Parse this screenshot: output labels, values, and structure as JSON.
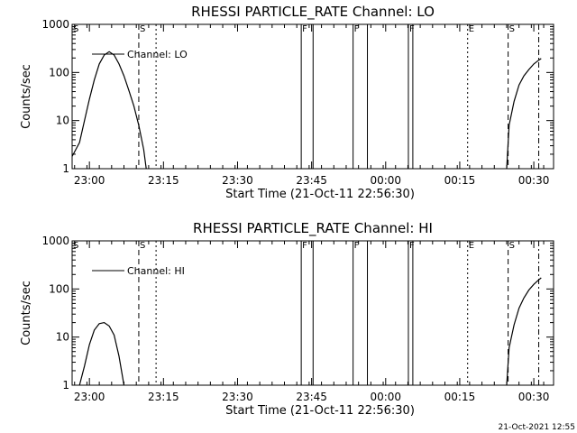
{
  "footer": "21-Oct-2021 12:55",
  "chart_data": [
    {
      "type": "line",
      "title": "RHESSI PARTICLE_RATE Channel: LO",
      "xlabel": "Start Time (21-Oct-11 22:56:30)",
      "ylabel": "Counts/sec",
      "yscale": "log",
      "ylim": [
        1,
        1000
      ],
      "xlim_minutes": [
        0,
        40
      ],
      "xticks": [
        "23:00",
        "23:15",
        "23:30",
        "23:45",
        "00:00",
        "00:15",
        "00:30"
      ],
      "yticks": [
        "1",
        "10",
        "100",
        "1000"
      ],
      "legend": {
        "position": "top-left",
        "entries": [
          "Channel: LO"
        ]
      },
      "flags": [
        "S",
        "F",
        "F",
        "F",
        "E",
        "S"
      ],
      "series": [
        {
          "name": "Channel: LO",
          "segments": [
            {
              "x": [
                "22:56:30",
                "22:58:00",
                "22:59:00",
                "23:00:00",
                "23:01:00",
                "23:02:00",
                "23:03:00",
                "23:04:00",
                "23:05:00",
                "23:06:00",
                "23:07:00",
                "23:08:00",
                "23:09:00",
                "23:10:00",
                "23:11:00",
                "23:11:30"
              ],
              "y": [
                1.8,
                3.5,
                10,
                28,
                70,
                150,
                230,
                270,
                230,
                150,
                85,
                42,
                20,
                8,
                2.5,
                1
              ]
            },
            {
              "x": [
                "00:24:30",
                "00:25:00",
                "00:26:00",
                "00:27:00",
                "00:28:00",
                "00:29:00",
                "00:30:00",
                "00:31:00",
                "00:31:30"
              ],
              "y": [
                1,
                8,
                25,
                55,
                85,
                115,
                150,
                180,
                195
              ]
            }
          ]
        }
      ]
    },
    {
      "type": "line",
      "title": "RHESSI PARTICLE_RATE Channel: HI",
      "xlabel": "Start Time (21-Oct-11 22:56:30)",
      "ylabel": "Counts/sec",
      "yscale": "log",
      "ylim": [
        1,
        1000
      ],
      "xlim_minutes": [
        0,
        40
      ],
      "xticks": [
        "23:00",
        "23:15",
        "23:30",
        "23:45",
        "00:00",
        "00:15",
        "00:30"
      ],
      "yticks": [
        "1",
        "10",
        "100",
        "1000"
      ],
      "legend": {
        "position": "top-left",
        "entries": [
          "Channel: HI"
        ]
      },
      "flags": [
        "S",
        "F",
        "F",
        "F",
        "E",
        "S"
      ],
      "series": [
        {
          "name": "Channel: HI",
          "segments": [
            {
              "x": [
                "22:58:00",
                "22:59:00",
                "23:00:00",
                "23:01:00",
                "23:02:00",
                "23:03:00",
                "23:04:00",
                "23:05:00",
                "23:06:00",
                "23:07:00"
              ],
              "y": [
                1,
                2.5,
                7,
                14,
                19,
                20,
                17,
                11,
                4,
                1
              ]
            },
            {
              "x": [
                "00:24:30",
                "00:25:00",
                "00:26:00",
                "00:27:00",
                "00:28:00",
                "00:29:00",
                "00:30:00",
                "00:31:00",
                "00:31:30"
              ],
              "y": [
                1,
                6,
                18,
                40,
                65,
                95,
                125,
                155,
                170
              ]
            }
          ]
        }
      ]
    }
  ]
}
